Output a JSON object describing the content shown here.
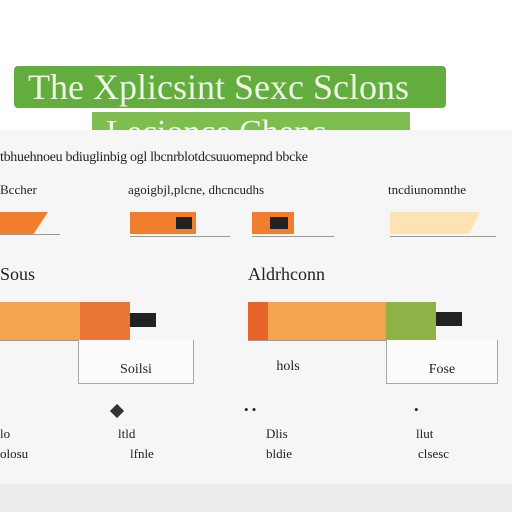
{
  "banner": {
    "title": "The Xplicsint Sexc Sclons",
    "subtitle": "Lecionce Chenc"
  },
  "caption": "tbhuehnoeu bdiuglinbig ogl lbcnrblotdcsuuomepnd bbcke",
  "row1": {
    "labels": [
      "Bccher",
      "agoigbjl,plcne, dhcncudhs",
      "tncdiunomnthe"
    ],
    "colors": {
      "orange": "#f07e2c",
      "light_orange": "#f5b97a",
      "dark_orange": "#e8632a",
      "green": "#8fb146",
      "pale": "#fde3b4",
      "tip": "#222222"
    }
  },
  "row2": {
    "labels": [
      "Sous",
      "Aldrhconn"
    ],
    "boxes": [
      "Soilsi",
      "hols",
      "Fose"
    ]
  },
  "row3": {
    "top": [
      "lo",
      "ltld",
      "Dlis",
      "llut"
    ],
    "bottom": [
      "olosu",
      "lfnle",
      "bldie",
      "clsesc"
    ]
  }
}
